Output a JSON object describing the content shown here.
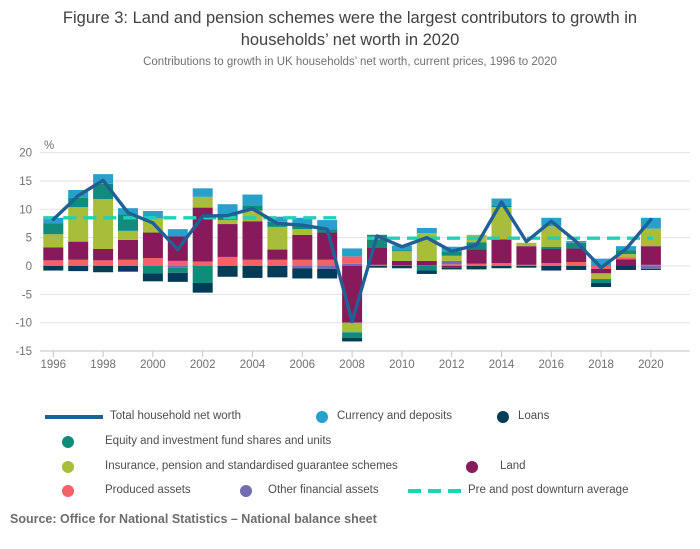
{
  "header": {
    "title": "Figure 3: Land and pension schemes were the largest contributors to growth in households’ net worth in 2020",
    "subtitle": "Contributions to growth in UK households’ net worth, current prices, 1996 to 2020"
  },
  "source": "Source: Office for National Statistics – National balance sheet",
  "colors": {
    "total_line": "#206095",
    "currency": "#27A0CC",
    "loans": "#003C57",
    "equity": "#118C7B",
    "pension": "#A8BD3A",
    "land": "#871A5B",
    "produced": "#F66068",
    "other": "#746CB1",
    "average_dash": "#22D0B6",
    "gridline": "#E2E2E2",
    "axis": "#B9C6D0",
    "tick_text": "#707070"
  },
  "legend": {
    "items": [
      {
        "id": "total-household-net-worth",
        "label": "Total household net worth",
        "marker": "line",
        "color": "#206095"
      },
      {
        "id": "currency-and-deposits",
        "label": "Currency and deposits",
        "marker": "dot",
        "color": "#27A0CC"
      },
      {
        "id": "loans",
        "label": "Loans",
        "marker": "dot",
        "color": "#003C57"
      },
      {
        "id": "equity-and-investment-fund-shares",
        "label": "Equity and investment fund shares and units",
        "marker": "dot",
        "color": "#118C7B"
      },
      {
        "id": "insurance-pension-schemes",
        "label": "Insurance, pension and standardised guarantee schemes",
        "marker": "dot",
        "color": "#A8BD3A"
      },
      {
        "id": "land",
        "label": "Land",
        "marker": "dot",
        "color": "#871A5B"
      },
      {
        "id": "produced-assets",
        "label": "Produced assets",
        "marker": "dot",
        "color": "#F66068"
      },
      {
        "id": "other-financial-assets",
        "label": "Other financial assets",
        "marker": "dot",
        "color": "#746CB1"
      },
      {
        "id": "pre-post-downturn-average",
        "label": "Pre and post downturn average",
        "marker": "dash",
        "color": "#22D0B6"
      }
    ]
  },
  "chart_data": {
    "type": "stacked-bar-with-line",
    "title": "Contributions to growth in UK households’ net worth, current prices, 1996 to 2020",
    "ylabel": "%",
    "ylim": [
      -15,
      20
    ],
    "y_ticks": [
      20,
      15,
      10,
      5,
      0,
      -5,
      -10,
      -15
    ],
    "x_tick_labels": [
      1996,
      1998,
      2000,
      2002,
      2004,
      2006,
      2008,
      2010,
      2012,
      2014,
      2016,
      2018,
      2020
    ],
    "grid": "horizontal",
    "series_names": {
      "currency": "Currency and deposits",
      "loans": "Loans",
      "equity": "Equity and investment fund shares and units",
      "pension": "Insurance, pension and standardised guarantee schemes",
      "land": "Land",
      "produced": "Produced assets",
      "other": "Other financial assets"
    },
    "years": [
      1996,
      1997,
      1998,
      1999,
      2000,
      2001,
      2002,
      2003,
      2004,
      2005,
      2006,
      2007,
      2008,
      2009,
      2010,
      2011,
      2012,
      2013,
      2014,
      2015,
      2016,
      2017,
      2018,
      2019,
      2020
    ],
    "bars": [
      {
        "year": 1996,
        "pos": [
          [
            "produced",
            1.0
          ],
          [
            "land",
            2.3
          ],
          [
            "pension",
            2.3
          ],
          [
            "equity",
            1.9
          ],
          [
            "currency",
            1.0
          ]
        ],
        "neg": [
          [
            "loans",
            -0.8
          ]
        ]
      },
      {
        "year": 1997,
        "pos": [
          [
            "produced",
            1.1
          ],
          [
            "land",
            3.2
          ],
          [
            "pension",
            6.1
          ],
          [
            "equity",
            1.6
          ],
          [
            "currency",
            1.4
          ]
        ],
        "neg": [
          [
            "loans",
            -0.9
          ]
        ]
      },
      {
        "year": 1998,
        "pos": [
          [
            "produced",
            1.0
          ],
          [
            "land",
            2.0
          ],
          [
            "pension",
            8.8
          ],
          [
            "equity",
            2.7
          ],
          [
            "currency",
            1.7
          ]
        ],
        "neg": [
          [
            "loans",
            -1.1
          ]
        ]
      },
      {
        "year": 1999,
        "pos": [
          [
            "produced",
            1.1
          ],
          [
            "land",
            3.5
          ],
          [
            "pension",
            1.6
          ],
          [
            "equity",
            2.9
          ],
          [
            "currency",
            1.1
          ]
        ],
        "neg": [
          [
            "loans",
            -1.0
          ]
        ]
      },
      {
        "year": 2000,
        "pos": [
          [
            "produced",
            1.4
          ],
          [
            "land",
            4.5
          ],
          [
            "pension",
            2.5
          ],
          [
            "currency",
            1.3
          ]
        ],
        "neg": [
          [
            "equity",
            -1.3
          ],
          [
            "loans",
            -1.4
          ]
        ]
      },
      {
        "year": 2001,
        "pos": [
          [
            "produced",
            0.9
          ],
          [
            "land",
            4.3
          ],
          [
            "currency",
            1.3
          ]
        ],
        "neg": [
          [
            "other",
            -0.3
          ],
          [
            "equity",
            -0.9
          ],
          [
            "loans",
            -1.6
          ]
        ]
      },
      {
        "year": 2002,
        "pos": [
          [
            "produced",
            0.8
          ],
          [
            "land",
            9.5
          ],
          [
            "pension",
            1.9
          ],
          [
            "currency",
            1.5
          ]
        ],
        "neg": [
          [
            "equity",
            -3.0
          ],
          [
            "loans",
            -1.7
          ]
        ]
      },
      {
        "year": 2003,
        "pos": [
          [
            "produced",
            1.6
          ],
          [
            "land",
            5.8
          ],
          [
            "pension",
            0.7
          ],
          [
            "equity",
            0.9
          ],
          [
            "currency",
            1.9
          ]
        ],
        "neg": [
          [
            "loans",
            -1.9
          ]
        ]
      },
      {
        "year": 2004,
        "pos": [
          [
            "produced",
            1.1
          ],
          [
            "land",
            6.8
          ],
          [
            "pension",
            1.9
          ],
          [
            "equity",
            0.9
          ],
          [
            "currency",
            1.9
          ]
        ],
        "neg": [
          [
            "loans",
            -2.1
          ]
        ]
      },
      {
        "year": 2005,
        "pos": [
          [
            "produced",
            1.1
          ],
          [
            "land",
            1.8
          ],
          [
            "pension",
            4.0
          ],
          [
            "equity",
            0.9
          ],
          [
            "currency",
            0.9
          ]
        ],
        "neg": [
          [
            "loans",
            -2.0
          ]
        ]
      },
      {
        "year": 2006,
        "pos": [
          [
            "produced",
            1.1
          ],
          [
            "land",
            4.4
          ],
          [
            "pension",
            1.0
          ],
          [
            "equity",
            0.7
          ],
          [
            "currency",
            1.3
          ]
        ],
        "neg": [
          [
            "other",
            -0.4
          ],
          [
            "loans",
            -1.8
          ]
        ]
      },
      {
        "year": 2007,
        "pos": [
          [
            "produced",
            1.1
          ],
          [
            "land",
            4.8
          ],
          [
            "equity",
            0.6
          ],
          [
            "currency",
            1.6
          ]
        ],
        "neg": [
          [
            "other",
            -0.5
          ],
          [
            "loans",
            -1.7
          ]
        ]
      },
      {
        "year": 2008,
        "pos": [
          [
            "other",
            0.4
          ],
          [
            "produced",
            1.3
          ],
          [
            "currency",
            1.4
          ]
        ],
        "neg": [
          [
            "land",
            -10.0
          ],
          [
            "pension",
            -1.7
          ],
          [
            "equity",
            -1.0
          ],
          [
            "loans",
            -0.6
          ]
        ]
      },
      {
        "year": 2009,
        "pos": [
          [
            "produced",
            0.2
          ],
          [
            "land",
            3.1
          ],
          [
            "equity",
            2.2
          ]
        ],
        "neg": [
          [
            "loans",
            -0.3
          ]
        ]
      },
      {
        "year": 2010,
        "pos": [
          [
            "produced",
            0.1
          ],
          [
            "land",
            0.8
          ],
          [
            "pension",
            1.7
          ],
          [
            "equity",
            0.2
          ],
          [
            "currency",
            0.8
          ]
        ],
        "neg": [
          [
            "loans",
            -0.4
          ]
        ]
      },
      {
        "year": 2011,
        "pos": [
          [
            "produced",
            0.1
          ],
          [
            "land",
            0.8
          ],
          [
            "pension",
            4.9
          ],
          [
            "currency",
            0.9
          ]
        ],
        "neg": [
          [
            "equity",
            -0.8
          ],
          [
            "loans",
            -0.6
          ]
        ]
      },
      {
        "year": 2012,
        "pos": [
          [
            "produced",
            0.3
          ],
          [
            "other",
            0.6
          ],
          [
            "pension",
            0.9
          ],
          [
            "equity",
            0.8
          ],
          [
            "currency",
            0.8
          ]
        ],
        "neg": [
          [
            "land",
            -0.3
          ],
          [
            "loans",
            -0.3
          ]
        ]
      },
      {
        "year": 2013,
        "pos": [
          [
            "produced",
            0.4
          ],
          [
            "land",
            2.5
          ],
          [
            "equity",
            1.3
          ],
          [
            "pension",
            1.3
          ]
        ],
        "neg": [
          [
            "loans",
            -0.6
          ]
        ]
      },
      {
        "year": 2014,
        "pos": [
          [
            "produced",
            0.5
          ],
          [
            "land",
            4.2
          ],
          [
            "pension",
            5.7
          ],
          [
            "equity",
            0.3
          ],
          [
            "currency",
            1.2
          ]
        ],
        "neg": [
          [
            "loans",
            -0.4
          ]
        ]
      },
      {
        "year": 2015,
        "pos": [
          [
            "produced",
            0.2
          ],
          [
            "land",
            3.3
          ],
          [
            "pension",
            0.6
          ]
        ],
        "neg": [
          [
            "loans",
            -0.3
          ]
        ]
      },
      {
        "year": 2016,
        "pos": [
          [
            "produced",
            0.5
          ],
          [
            "land",
            2.5
          ],
          [
            "equity",
            0.4
          ],
          [
            "pension",
            3.6
          ],
          [
            "currency",
            1.5
          ]
        ],
        "neg": [
          [
            "loans",
            -0.8
          ]
        ]
      },
      {
        "year": 2017,
        "pos": [
          [
            "produced",
            0.7
          ],
          [
            "land",
            2.4
          ],
          [
            "equity",
            1.0
          ],
          [
            "currency",
            0.3
          ]
        ],
        "neg": [
          [
            "loans",
            -0.7
          ]
        ]
      },
      {
        "year": 2018,
        "pos": [
          [
            "currency",
            1.3
          ]
        ],
        "neg": [
          [
            "produced",
            -0.5
          ],
          [
            "land",
            -0.8
          ],
          [
            "pension",
            -1.0
          ],
          [
            "equity",
            -0.7
          ],
          [
            "loans",
            -0.7
          ]
        ]
      },
      {
        "year": 2019,
        "pos": [
          [
            "land",
            1.2
          ],
          [
            "produced",
            0.3
          ],
          [
            "pension",
            0.6
          ],
          [
            "equity",
            0.7
          ],
          [
            "currency",
            0.7
          ]
        ],
        "neg": [
          [
            "loans",
            -0.7
          ]
        ]
      },
      {
        "year": 2020,
        "pos": [
          [
            "produced",
            0.2
          ],
          [
            "land",
            3.3
          ],
          [
            "pension",
            3.1
          ],
          [
            "currency",
            1.9
          ]
        ],
        "neg": [
          [
            "other",
            -0.5
          ],
          [
            "loans",
            -0.2
          ]
        ]
      }
    ],
    "total_line": {
      "name": "Total household net worth",
      "values": [
        8.2,
        12.4,
        15.1,
        9.4,
        7.6,
        2.9,
        8.8,
        8.9,
        10.1,
        7.5,
        7.2,
        6.5,
        -9.8,
        5.3,
        3.4,
        5.0,
        2.6,
        3.7,
        11.3,
        4.3,
        7.9,
        4.3,
        -0.3,
        3.0,
        8.2
      ]
    },
    "downturn_averages": {
      "label": "Pre and post downturn average",
      "pre": {
        "value": 8.5,
        "from": 1996,
        "to": 2007
      },
      "post": {
        "value": 4.9,
        "from": 2009,
        "to": 2020
      }
    },
    "legend_position": "bottom"
  }
}
